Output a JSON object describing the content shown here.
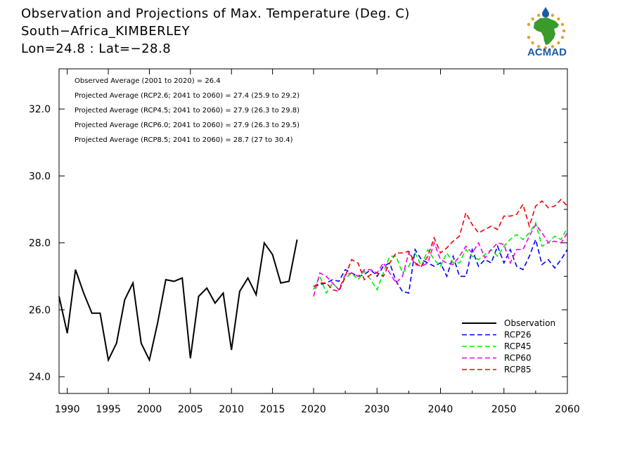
{
  "title_lines": [
    "Observation and Projections of Max. Temperature (Deg. C)",
    "South−Africa_KIMBERLEY",
    "Lon=24.8 : Lat=−28.8"
  ],
  "logo": {
    "text": "ACMAD",
    "colors": {
      "text": "#1a5aa8",
      "map": "#3a9a2a",
      "ring": "#e8a020",
      "drop": "#1a5aa8"
    }
  },
  "chart_data": {
    "type": "line",
    "xlim": [
      1989,
      2060
    ],
    "ylim": [
      23.5,
      33.2
    ],
    "xticks": [
      1990,
      1995,
      2000,
      2005,
      2010,
      2015,
      2020,
      2030,
      2040,
      2050,
      2060
    ],
    "xtick_labels": [
      "1990",
      "1995",
      "2000",
      "2005",
      "2010",
      "2015",
      "2020",
      "2030",
      "2040",
      "2050",
      "2060"
    ],
    "yticks": [
      24,
      26,
      28,
      30,
      32
    ],
    "ytick_labels": [
      "24.0",
      "26.0",
      "28.0",
      "30.0",
      "32.0"
    ],
    "minor_yticks": [
      25,
      27,
      29,
      31
    ],
    "grid": false,
    "legend_position": "bottom-right",
    "annotations": [
      "Observed Average (2001 to 2020) = 26.4",
      "Projected Average (RCP2.6; 2041 to 2060) = 27.4 (25.9 to 29.2)",
      "Projected Average (RCP4.5; 2041 to 2060) = 27.9 (26.3 to 29.8)",
      "Projected Average (RCP6.0; 2041 to 2060) = 27.9 (26.3 to 29.5)",
      "Projected Average (RCP8.5; 2041 to 2060) = 28.7 (27 to 30.4)"
    ],
    "series": [
      {
        "name": "Observation",
        "color": "#000000",
        "dash": "solid",
        "x": [
          1989,
          1990,
          1991,
          1992,
          1993,
          1994,
          1995,
          1996,
          1997,
          1998,
          1999,
          2000,
          2001,
          2002,
          2003,
          2004,
          2005,
          2006,
          2007,
          2008,
          2009,
          2010,
          2011,
          2012,
          2013,
          2014,
          2015,
          2016,
          2017,
          2018,
          2019
        ],
        "y": [
          26.4,
          25.3,
          27.2,
          26.5,
          25.9,
          25.9,
          24.5,
          25.0,
          26.3,
          26.8,
          25.0,
          24.5,
          25.6,
          26.9,
          26.85,
          26.95,
          24.55,
          26.4,
          26.65,
          26.2,
          26.5,
          24.8,
          26.55,
          26.95,
          26.45,
          28.0,
          27.65,
          26.8,
          26.85,
          28.1,
          null
        ]
      },
      {
        "name": "RCP26",
        "color": "#0000ee",
        "dash": "dashed",
        "x": [
          2020,
          2021,
          2022,
          2023,
          2024,
          2025,
          2026,
          2027,
          2028,
          2029,
          2030,
          2031,
          2032,
          2033,
          2034,
          2035,
          2036,
          2037,
          2038,
          2039,
          2040,
          2041,
          2042,
          2043,
          2044,
          2045,
          2046,
          2047,
          2048,
          2049,
          2050,
          2051,
          2052,
          2053,
          2054,
          2055,
          2056,
          2057,
          2058,
          2059,
          2060
        ],
        "y": [
          26.7,
          26.75,
          26.8,
          26.9,
          26.85,
          27.2,
          27.1,
          27.0,
          27.05,
          27.2,
          27.0,
          27.3,
          27.4,
          26.85,
          26.55,
          26.5,
          27.8,
          27.5,
          27.4,
          27.3,
          27.4,
          27.0,
          27.6,
          27.0,
          27.0,
          27.8,
          27.3,
          27.5,
          27.4,
          27.9,
          27.4,
          27.8,
          27.3,
          27.2,
          27.6,
          28.1,
          27.35,
          27.5,
          27.25,
          27.5,
          27.8
        ]
      },
      {
        "name": "RCP45",
        "color": "#00ee00",
        "dash": "dashed",
        "x": [
          2020,
          2021,
          2022,
          2023,
          2024,
          2025,
          2026,
          2027,
          2028,
          2029,
          2030,
          2031,
          2032,
          2033,
          2034,
          2035,
          2036,
          2037,
          2038,
          2039,
          2040,
          2041,
          2042,
          2043,
          2044,
          2045,
          2046,
          2047,
          2048,
          2049,
          2050,
          2051,
          2052,
          2053,
          2054,
          2055,
          2056,
          2057,
          2058,
          2059,
          2060
        ],
        "y": [
          26.6,
          27.0,
          26.5,
          26.8,
          26.6,
          26.95,
          27.1,
          26.9,
          27.15,
          26.9,
          26.6,
          27.1,
          27.6,
          27.6,
          27.1,
          27.3,
          27.7,
          27.3,
          27.8,
          27.5,
          27.3,
          27.7,
          27.4,
          27.4,
          27.8,
          27.6,
          27.5,
          27.65,
          27.8,
          27.6,
          27.9,
          28.1,
          28.25,
          28.1,
          28.3,
          28.6,
          27.9,
          28.0,
          28.2,
          28.1,
          28.45
        ]
      },
      {
        "name": "RCP60",
        "color": "#ee00ee",
        "dash": "dashed",
        "x": [
          2020,
          2021,
          2022,
          2023,
          2024,
          2025,
          2026,
          2027,
          2028,
          2029,
          2030,
          2031,
          2032,
          2033,
          2034,
          2035,
          2036,
          2037,
          2038,
          2039,
          2040,
          2041,
          2042,
          2043,
          2044,
          2045,
          2046,
          2047,
          2048,
          2049,
          2050,
          2051,
          2052,
          2053,
          2054,
          2055,
          2056,
          2057,
          2058,
          2059,
          2060
        ],
        "y": [
          26.4,
          27.1,
          27.0,
          26.8,
          26.6,
          27.05,
          27.1,
          27.0,
          27.2,
          27.2,
          27.1,
          27.4,
          27.1,
          26.8,
          27.0,
          27.7,
          27.35,
          27.3,
          27.4,
          28.0,
          27.5,
          27.4,
          27.35,
          27.6,
          27.9,
          27.7,
          28.0,
          27.55,
          27.8,
          28.0,
          27.95,
          27.4,
          27.8,
          27.8,
          28.2,
          28.55,
          28.3,
          28.0,
          28.05,
          28.0,
          28.3
        ]
      },
      {
        "name": "RCP85",
        "color": "#ee0000",
        "dash": "dashed",
        "x": [
          2020,
          2021,
          2022,
          2023,
          2024,
          2025,
          2026,
          2027,
          2028,
          2029,
          2030,
          2031,
          2032,
          2033,
          2034,
          2035,
          2036,
          2037,
          2038,
          2039,
          2040,
          2041,
          2042,
          2043,
          2044,
          2045,
          2046,
          2047,
          2048,
          2049,
          2050,
          2051,
          2052,
          2053,
          2054,
          2055,
          2056,
          2057,
          2058,
          2059,
          2060
        ],
        "y": [
          26.7,
          26.8,
          26.8,
          26.6,
          26.55,
          27.0,
          27.5,
          27.4,
          26.9,
          27.05,
          27.1,
          27.0,
          27.4,
          27.7,
          27.7,
          27.75,
          27.4,
          27.3,
          27.6,
          28.15,
          27.7,
          27.85,
          28.05,
          28.2,
          28.9,
          28.55,
          28.3,
          28.4,
          28.5,
          28.4,
          28.8,
          28.8,
          28.85,
          29.15,
          28.5,
          29.1,
          29.25,
          29.05,
          29.1,
          29.3,
          29.1
        ]
      }
    ]
  }
}
